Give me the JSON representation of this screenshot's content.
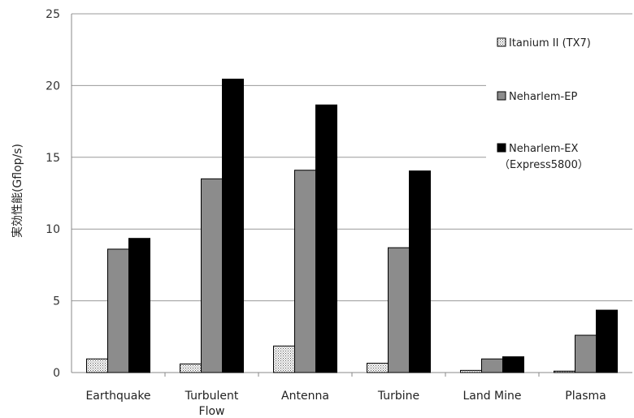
{
  "chart_data": {
    "type": "bar",
    "ylabel": "実効性能(Gflop/s)",
    "ylim": [
      0,
      25
    ],
    "yticks": [
      0,
      5,
      10,
      15,
      20,
      25
    ],
    "grid": true,
    "legend_position": "right",
    "categories": [
      [
        "Earthquake"
      ],
      [
        "Turbulent",
        "Flow"
      ],
      [
        "Antenna"
      ],
      [
        "Turbine"
      ],
      [
        "Land Mine"
      ],
      [
        "Plasma"
      ]
    ],
    "series": [
      {
        "name": "Itanium II (TX7)",
        "name_lines": [
          "Itanium II (TX7)"
        ],
        "values": [
          0.95,
          0.6,
          1.85,
          0.65,
          0.15,
          0.1
        ],
        "fill": "dots"
      },
      {
        "name": "Neharlem-EP",
        "name_lines": [
          "Neharlem-EP"
        ],
        "values": [
          8.6,
          13.5,
          14.1,
          8.7,
          0.95,
          2.6
        ],
        "fill": "#8c8c8c"
      },
      {
        "name": "Neharlem-EX (Express5800)",
        "name_lines": [
          "Neharlem-EX",
          "（Express5800）"
        ],
        "values": [
          9.35,
          20.45,
          18.65,
          14.05,
          1.1,
          4.35
        ],
        "fill": "#000000"
      }
    ]
  }
}
